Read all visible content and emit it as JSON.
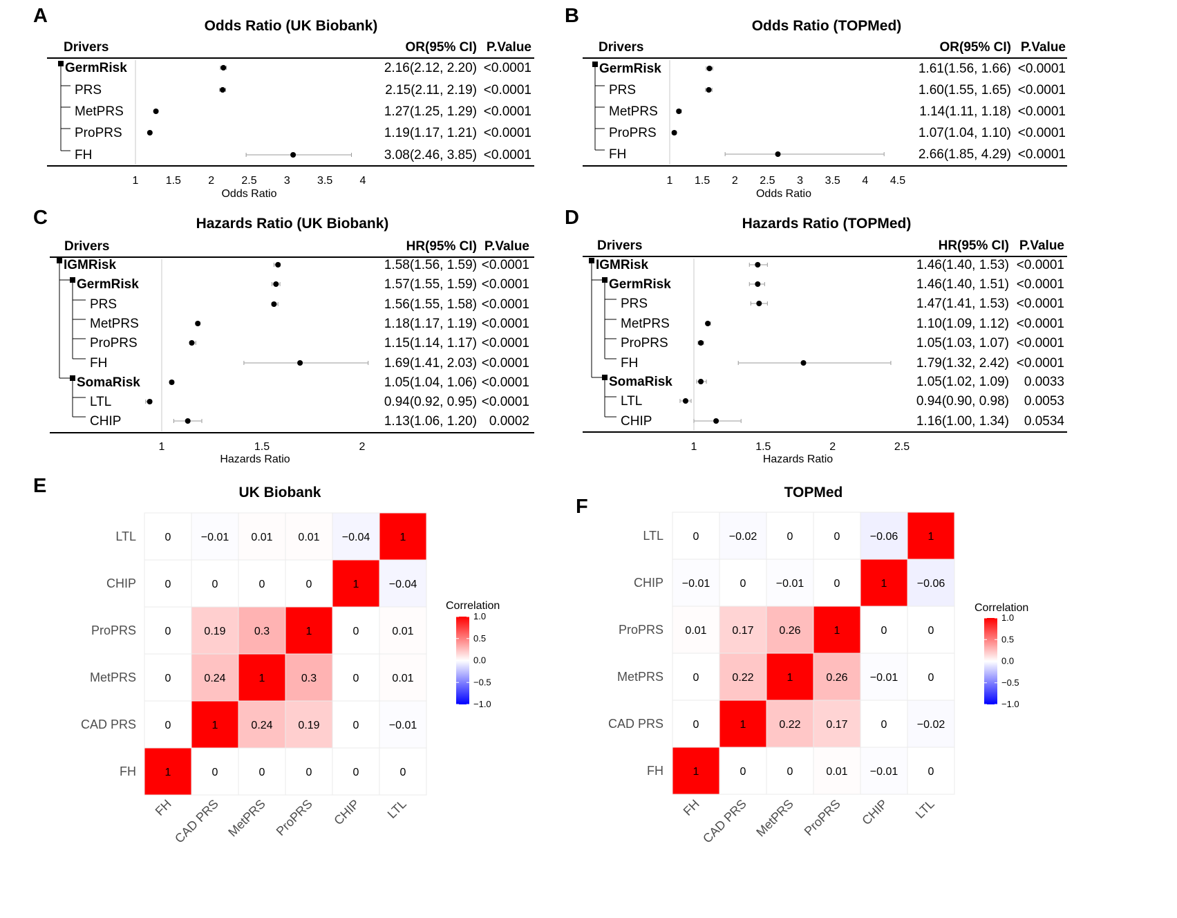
{
  "panels": [
    {
      "id": "A",
      "label": "A",
      "title": "Odds Ratio (UK Biobank)",
      "col_drivers": "Drivers",
      "col_est": "OR(95% CI)",
      "col_p": "P.Value",
      "axis_label": "Odds Ratio",
      "ticks": [
        "1",
        "1.5",
        "2",
        "2.5",
        "3",
        "3.5",
        "4"
      ],
      "tick_values": [
        1,
        1.5,
        2,
        2.5,
        3,
        3.5,
        4
      ],
      "rows": [
        {
          "label": "GermRisk",
          "bold": true,
          "level": 0,
          "est": "2.16(2.12, 2.20)",
          "p": "<0.0001"
        },
        {
          "label": "PRS",
          "bold": false,
          "level": 1,
          "est": "2.15(2.11, 2.19)",
          "p": "<0.0001"
        },
        {
          "label": "MetPRS",
          "bold": false,
          "level": 1,
          "est": "1.27(1.25, 1.29)",
          "p": "<0.0001"
        },
        {
          "label": "ProPRS",
          "bold": false,
          "level": 1,
          "est": "1.19(1.17, 1.21)",
          "p": "<0.0001"
        },
        {
          "label": "FH",
          "bold": false,
          "level": 1,
          "est": "3.08(2.46, 3.85)",
          "p": "<0.0001"
        }
      ]
    },
    {
      "id": "B",
      "label": "B",
      "title": "Odds Ratio (TOPMed)",
      "col_drivers": "Drivers",
      "col_est": "OR(95% CI)",
      "col_p": "P.Value",
      "axis_label": "Odds Ratio",
      "ticks": [
        "1",
        "1.5",
        "2",
        "2.5",
        "3",
        "3.5",
        "4",
        "4.5"
      ],
      "tick_values": [
        1,
        1.5,
        2,
        2.5,
        3,
        3.5,
        4,
        4.5
      ],
      "rows": [
        {
          "label": "GermRisk",
          "bold": true,
          "level": 0,
          "est": "1.61(1.56, 1.66)",
          "p": "<0.0001"
        },
        {
          "label": "PRS",
          "bold": false,
          "level": 1,
          "est": "1.60(1.55, 1.65)",
          "p": "<0.0001"
        },
        {
          "label": "MetPRS",
          "bold": false,
          "level": 1,
          "est": "1.14(1.11, 1.18)",
          "p": "<0.0001"
        },
        {
          "label": "ProPRS",
          "bold": false,
          "level": 1,
          "est": "1.07(1.04, 1.10)",
          "p": "<0.0001"
        },
        {
          "label": "FH",
          "bold": false,
          "level": 1,
          "est": "2.66(1.85, 4.29)",
          "p": "<0.0001"
        }
      ]
    },
    {
      "id": "C",
      "label": "C",
      "title": "Hazards Ratio (UK Biobank)",
      "col_drivers": "Drivers",
      "col_est": "HR(95% CI)",
      "col_p": "P.Value",
      "axis_label": "Hazards Ratio",
      "ticks": [
        "1",
        "1.5",
        "2"
      ],
      "tick_values": [
        1,
        1.5,
        2
      ],
      "rows": [
        {
          "label": "IGMRisk",
          "bold": true,
          "level": 0,
          "est": "1.58(1.56, 1.59)",
          "p": "<0.0001"
        },
        {
          "label": "GermRisk",
          "bold": true,
          "level": 1,
          "est": "1.57(1.55, 1.59)",
          "p": "<0.0001"
        },
        {
          "label": "PRS",
          "bold": false,
          "level": 2,
          "est": "1.56(1.55, 1.58)",
          "p": "<0.0001"
        },
        {
          "label": "MetPRS",
          "bold": false,
          "level": 2,
          "est": "1.18(1.17, 1.19)",
          "p": "<0.0001"
        },
        {
          "label": "ProPRS",
          "bold": false,
          "level": 2,
          "est": "1.15(1.14, 1.17)",
          "p": "<0.0001"
        },
        {
          "label": "FH",
          "bold": false,
          "level": 2,
          "est": "1.69(1.41, 2.03)",
          "p": "<0.0001"
        },
        {
          "label": "SomaRisk",
          "bold": true,
          "level": 1,
          "est": "1.05(1.04, 1.06)",
          "p": "<0.0001"
        },
        {
          "label": "LTL",
          "bold": false,
          "level": 2,
          "est": "0.94(0.92, 0.95)",
          "p": "<0.0001"
        },
        {
          "label": "CHIP",
          "bold": false,
          "level": 2,
          "est": "1.13(1.06, 1.20)",
          "p": "0.0002"
        }
      ]
    },
    {
      "id": "D",
      "label": "D",
      "title": "Hazards Ratio (TOPMed)",
      "col_drivers": "Drivers",
      "col_est": "HR(95% CI)",
      "col_p": "P.Value",
      "axis_label": "Hazards Ratio",
      "ticks": [
        "1",
        "1.5",
        "2",
        "2.5"
      ],
      "tick_values": [
        1,
        1.5,
        2,
        2.5
      ],
      "rows": [
        {
          "label": "IGMRisk",
          "bold": true,
          "level": 0,
          "est": "1.46(1.40, 1.53)",
          "p": "<0.0001"
        },
        {
          "label": "GermRisk",
          "bold": true,
          "level": 1,
          "est": "1.46(1.40, 1.51)",
          "p": "<0.0001"
        },
        {
          "label": "PRS",
          "bold": false,
          "level": 2,
          "est": "1.47(1.41, 1.53)",
          "p": "<0.0001"
        },
        {
          "label": "MetPRS",
          "bold": false,
          "level": 2,
          "est": "1.10(1.09, 1.12)",
          "p": "<0.0001"
        },
        {
          "label": "ProPRS",
          "bold": false,
          "level": 2,
          "est": "1.05(1.03, 1.07)",
          "p": "<0.0001"
        },
        {
          "label": "FH",
          "bold": false,
          "level": 2,
          "est": "1.79(1.32, 2.42)",
          "p": "<0.0001"
        },
        {
          "label": "SomaRisk",
          "bold": true,
          "level": 1,
          "est": "1.05(1.02, 1.09)",
          "p": "0.0033"
        },
        {
          "label": "LTL",
          "bold": false,
          "level": 2,
          "est": "0.94(0.90, 0.98)",
          "p": "0.0053"
        },
        {
          "label": "CHIP",
          "bold": false,
          "level": 2,
          "est": "1.16(1.00, 1.34)",
          "p": "0.0534"
        }
      ]
    },
    {
      "id": "E",
      "label": "E",
      "title": "UK Biobank"
    },
    {
      "id": "F",
      "label": "F",
      "title": "TOPMed"
    }
  ],
  "chart_data": [
    {
      "panel": "A",
      "type": "forest",
      "title": "Odds Ratio (UK Biobank)",
      "xlabel": "Odds Ratio",
      "xlim": [
        1,
        4
      ],
      "categories": [
        "GermRisk",
        "PRS",
        "MetPRS",
        "ProPRS",
        "FH"
      ],
      "estimate": [
        2.16,
        2.15,
        1.27,
        1.19,
        3.08
      ],
      "lower": [
        2.12,
        2.11,
        1.25,
        1.17,
        2.46
      ],
      "upper": [
        2.2,
        2.19,
        1.29,
        1.21,
        3.85
      ]
    },
    {
      "panel": "B",
      "type": "forest",
      "title": "Odds Ratio (TOPMed)",
      "xlabel": "Odds Ratio",
      "xlim": [
        1,
        4.5
      ],
      "categories": [
        "GermRisk",
        "PRS",
        "MetPRS",
        "ProPRS",
        "FH"
      ],
      "estimate": [
        1.61,
        1.6,
        1.14,
        1.07,
        2.66
      ],
      "lower": [
        1.56,
        1.55,
        1.11,
        1.04,
        1.85
      ],
      "upper": [
        1.66,
        1.65,
        1.18,
        1.1,
        4.29
      ]
    },
    {
      "panel": "C",
      "type": "forest",
      "title": "Hazards Ratio (UK Biobank)",
      "xlabel": "Hazards Ratio",
      "xlim": [
        1,
        2
      ],
      "categories": [
        "IGMRisk",
        "GermRisk",
        "PRS",
        "MetPRS",
        "ProPRS",
        "FH",
        "SomaRisk",
        "LTL",
        "CHIP"
      ],
      "estimate": [
        1.58,
        1.57,
        1.56,
        1.18,
        1.15,
        1.69,
        1.05,
        0.94,
        1.13
      ],
      "lower": [
        1.56,
        1.55,
        1.55,
        1.17,
        1.14,
        1.41,
        1.04,
        0.92,
        1.06
      ],
      "upper": [
        1.59,
        1.59,
        1.58,
        1.19,
        1.17,
        2.03,
        1.06,
        0.95,
        1.2
      ]
    },
    {
      "panel": "D",
      "type": "forest",
      "title": "Hazards Ratio (TOPMed)",
      "xlabel": "Hazards Ratio",
      "xlim": [
        1,
        2.5
      ],
      "categories": [
        "IGMRisk",
        "GermRisk",
        "PRS",
        "MetPRS",
        "ProPRS",
        "FH",
        "SomaRisk",
        "LTL",
        "CHIP"
      ],
      "estimate": [
        1.46,
        1.46,
        1.47,
        1.1,
        1.05,
        1.79,
        1.05,
        0.94,
        1.16
      ],
      "lower": [
        1.4,
        1.4,
        1.41,
        1.09,
        1.03,
        1.32,
        1.02,
        0.9,
        1.0
      ],
      "upper": [
        1.53,
        1.51,
        1.53,
        1.12,
        1.07,
        2.42,
        1.09,
        0.98,
        1.34
      ]
    },
    {
      "panel": "E",
      "type": "heatmap",
      "title": "UK Biobank",
      "x_labels": [
        "FH",
        "CAD PRS",
        "MetPRS",
        "ProPRS",
        "CHIP",
        "LTL"
      ],
      "y_labels": [
        "LTL",
        "CHIP",
        "ProPRS",
        "MetPRS",
        "CAD PRS",
        "FH"
      ],
      "values": [
        [
          "0",
          "−0.01",
          "0.01",
          "0.01",
          "−0.04",
          "1"
        ],
        [
          "0",
          "0",
          "0",
          "0",
          "1",
          "−0.04"
        ],
        [
          "0",
          "0.19",
          "0.3",
          "1",
          "0",
          "0.01"
        ],
        [
          "0",
          "0.24",
          "1",
          "0.3",
          "0",
          "0.01"
        ],
        [
          "0",
          "1",
          "0.24",
          "0.19",
          "0",
          "−0.01"
        ],
        [
          "1",
          "0",
          "0",
          "0",
          "0",
          "0"
        ]
      ],
      "legend_title": "Correlation",
      "legend_ticks": [
        "1.0",
        "0.5",
        "0.0",
        "−0.5",
        "−1.0"
      ],
      "scale": [
        -1,
        1
      ],
      "colors": {
        "low": "#0000ff",
        "mid": "#ffffff",
        "high": "#ff0000"
      }
    },
    {
      "panel": "F",
      "type": "heatmap",
      "title": "TOPMed",
      "x_labels": [
        "FH",
        "CAD PRS",
        "MetPRS",
        "ProPRS",
        "CHIP",
        "LTL"
      ],
      "y_labels": [
        "LTL",
        "CHIP",
        "ProPRS",
        "MetPRS",
        "CAD PRS",
        "FH"
      ],
      "values": [
        [
          "0",
          "−0.02",
          "0",
          "0",
          "−0.06",
          "1"
        ],
        [
          "−0.01",
          "0",
          "−0.01",
          "0",
          "1",
          "−0.06"
        ],
        [
          "0.01",
          "0.17",
          "0.26",
          "1",
          "0",
          "0"
        ],
        [
          "0",
          "0.22",
          "1",
          "0.26",
          "−0.01",
          "0"
        ],
        [
          "0",
          "1",
          "0.22",
          "0.17",
          "0",
          "−0.02"
        ],
        [
          "1",
          "0",
          "0",
          "0.01",
          "−0.01",
          "0"
        ]
      ],
      "legend_title": "Correlation",
      "legend_ticks": [
        "1.0",
        "0.5",
        "0.0",
        "−0.5",
        "−1.0"
      ],
      "scale": [
        -1,
        1
      ],
      "colors": {
        "low": "#0000ff",
        "mid": "#ffffff",
        "high": "#ff0000"
      }
    }
  ]
}
